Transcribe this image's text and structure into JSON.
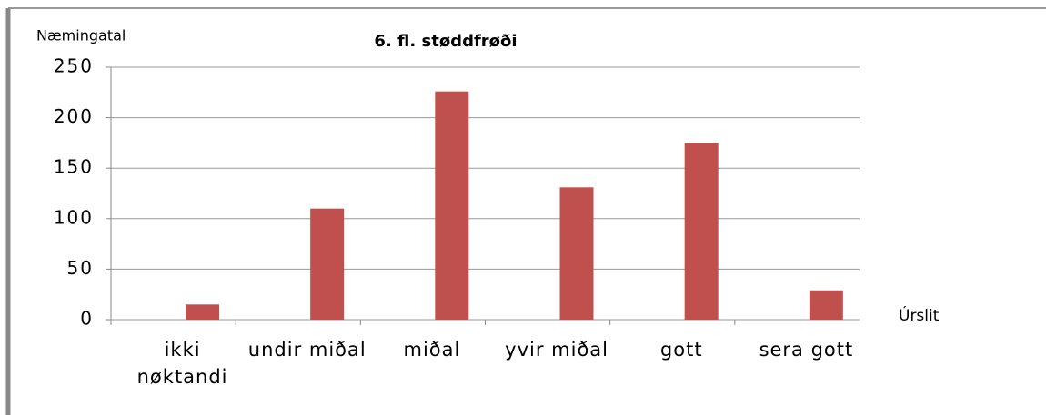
{
  "chart_data": {
    "type": "bar",
    "title": "6. fl. støddfrøði",
    "y_label": "Næmingatal",
    "x_label": "Úrslit",
    "categories": [
      "ikki nøktandi",
      "undir miðal",
      "miðal",
      "yvir miðal",
      "gott",
      "sera gott"
    ],
    "values": [
      15,
      110,
      226,
      131,
      175,
      29
    ],
    "color": "#c0504d",
    "ylim": [
      0,
      250
    ],
    "yticks": [
      0,
      50,
      100,
      150,
      200,
      250
    ],
    "grid": true
  }
}
